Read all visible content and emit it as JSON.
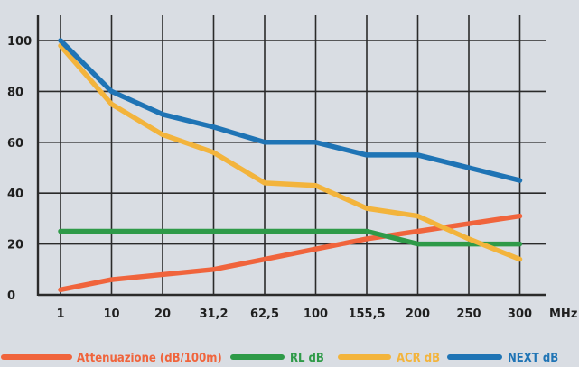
{
  "chart_data": {
    "type": "line",
    "title": "",
    "xlabel": "",
    "ylabel": "",
    "x_unit_label": "MHz",
    "categories": [
      "1",
      "10",
      "20",
      "31,2",
      "62,5",
      "100",
      "155,5",
      "200",
      "250",
      "300"
    ],
    "ylim": [
      0,
      100
    ],
    "yticks": [
      0,
      20,
      40,
      60,
      80,
      100
    ],
    "grid": true,
    "legend_position": "bottom",
    "series": [
      {
        "name": "Attenuazione (dB/100m)",
        "color": "#f0643c",
        "values": [
          2,
          6,
          8,
          10,
          14,
          18,
          22,
          25,
          28,
          31
        ]
      },
      {
        "name": "RL dB",
        "color": "#2e9a48",
        "values": [
          25,
          25,
          25,
          25,
          25,
          25,
          25,
          20,
          20,
          20
        ]
      },
      {
        "name": "ACR dB",
        "color": "#f3b43c",
        "values": [
          98,
          75,
          63,
          56,
          44,
          43,
          34,
          31,
          22,
          14
        ]
      },
      {
        "name": "NEXT dB",
        "color": "#1f74b5",
        "values": [
          100,
          80,
          71,
          66,
          60,
          60,
          55,
          55,
          50,
          45
        ]
      }
    ]
  }
}
